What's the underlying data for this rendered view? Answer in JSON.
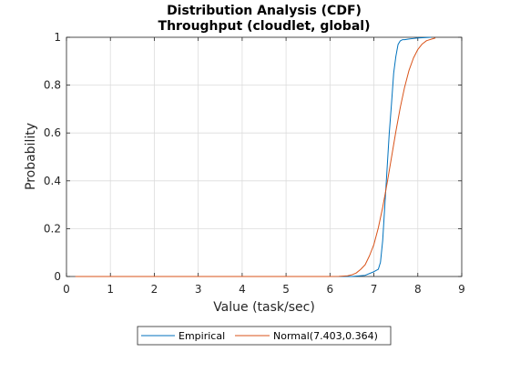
{
  "chart_data": {
    "type": "line",
    "title": "Distribution Analysis (CDF)",
    "subtitle": "Throughput (cloudlet, global)",
    "xlabel": "Value (task/sec)",
    "ylabel": "Probability",
    "xlim": [
      0,
      9
    ],
    "ylim": [
      0,
      1
    ],
    "xticks": [
      "0",
      "1",
      "2",
      "3",
      "4",
      "5",
      "6",
      "7",
      "8",
      "9"
    ],
    "yticks": [
      "0",
      "0.2",
      "0.4",
      "0.6",
      "0.8",
      "1"
    ],
    "grid": true,
    "legend_position": "bottom-outside",
    "series": [
      {
        "name": "Empirical",
        "color": "#0072bd",
        "x": [
          0.2,
          6.5,
          6.8,
          7.0,
          7.1,
          7.15,
          7.2,
          7.25,
          7.3,
          7.35,
          7.4,
          7.45,
          7.5,
          7.55,
          7.6,
          7.65,
          7.7,
          7.8,
          7.9,
          8.0,
          8.1,
          8.3
        ],
        "y": [
          0,
          0,
          0.005,
          0.02,
          0.03,
          0.06,
          0.15,
          0.3,
          0.45,
          0.6,
          0.72,
          0.85,
          0.92,
          0.97,
          0.985,
          0.99,
          0.99,
          0.993,
          0.995,
          0.997,
          0.998,
          1.0
        ]
      },
      {
        "name": "Normal(7.403,0.364)",
        "color": "#d95319",
        "x": [
          0.2,
          5.8,
          6.0,
          6.2,
          6.4,
          6.5,
          6.6,
          6.7,
          6.8,
          6.9,
          7.0,
          7.1,
          7.2,
          7.3,
          7.4,
          7.5,
          7.6,
          7.7,
          7.8,
          7.9,
          8.0,
          8.1,
          8.2,
          8.4
        ],
        "y": [
          0,
          0,
          0.0001,
          0.0005,
          0.003,
          0.007,
          0.015,
          0.03,
          0.049,
          0.087,
          0.134,
          0.203,
          0.289,
          0.389,
          0.497,
          0.606,
          0.706,
          0.792,
          0.862,
          0.913,
          0.949,
          0.972,
          0.986,
          0.997
        ]
      }
    ]
  }
}
